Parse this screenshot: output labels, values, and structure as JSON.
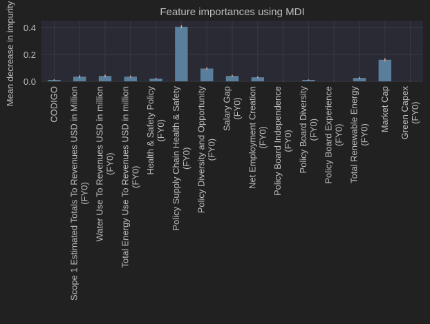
{
  "chart_data": {
    "type": "bar",
    "title": "Feature importances using MDI",
    "xlabel": "",
    "ylabel": "Mean decrease in impurity",
    "ylim": [
      0,
      0.45
    ],
    "yticks": [
      "0.0",
      "0.2",
      "0.4"
    ],
    "grid": true,
    "legend": "none",
    "bar_color": "#5a7f9c",
    "error_color": "#e0a890",
    "categories": [
      [
        "CODIGO"
      ],
      [
        "Scope 1 Estimated Totals To Revenues USD in Million",
        "(FY0)"
      ],
      [
        "Water Use To Revenues USD in million",
        "(FY0)"
      ],
      [
        "Total Energy Use To Revenues USD in million",
        "(FY0)"
      ],
      [
        "Health & Safety Policy",
        "(FY0)"
      ],
      [
        "Policy Supply Chain Health & Safety",
        "(FY0)"
      ],
      [
        "Policy Diversity and Opportunity",
        "(FY0)"
      ],
      [
        "Salary Gap",
        "(FY0)"
      ],
      [
        "Net Employment Creation",
        "(FY0)"
      ],
      [
        "Policy Board Independence",
        "(FY0)"
      ],
      [
        "Policy Board Diversity",
        "(FY0)"
      ],
      [
        "Policy Board Experience",
        "(FY0)"
      ],
      [
        "Total Renewable Energy",
        "(FY0)"
      ],
      [
        "Market Cap"
      ],
      [
        "Green Capex",
        "(FY0)"
      ]
    ],
    "values": [
      0.01,
      0.035,
      0.04,
      0.035,
      0.02,
      0.405,
      0.095,
      0.04,
      0.03,
      0.0,
      0.01,
      0.0,
      0.025,
      0.16,
      0.0
    ],
    "errors": [
      0.005,
      0.01,
      0.01,
      0.008,
      0.006,
      0.012,
      0.01,
      0.008,
      0.008,
      0.002,
      0.004,
      0.002,
      0.008,
      0.012,
      0.002
    ]
  }
}
